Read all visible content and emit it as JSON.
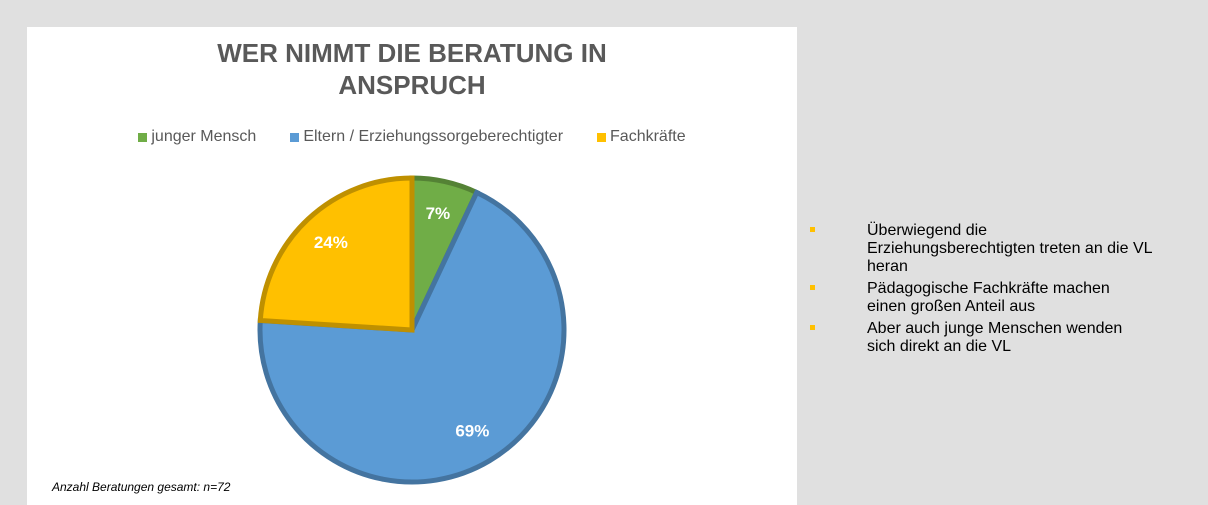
{
  "chart_data": {
    "type": "pie",
    "title": [
      "WER NIMMT DIE BERATUNG IN",
      "ANSPRUCH"
    ],
    "categories": [
      "junger Mensch",
      "Eltern / Erziehungssorgeberechtigter",
      "Fachkräfte"
    ],
    "values": [
      7,
      69,
      24
    ],
    "value_labels": [
      "7%",
      "69%",
      "24%"
    ],
    "colors": [
      "#70ad47",
      "#5b9bd5",
      "#ffc000"
    ],
    "legend": "top"
  },
  "note": "Anzahl Beratungen gesamt: n=72",
  "bullets": [
    "Überwiegend die Erziehungsberechtigten treten an die VL heran",
    "Pädagogische Fachkräfte machen einen großen Anteil aus",
    "Aber auch junge Menschen wenden sich direkt an die VL"
  ]
}
